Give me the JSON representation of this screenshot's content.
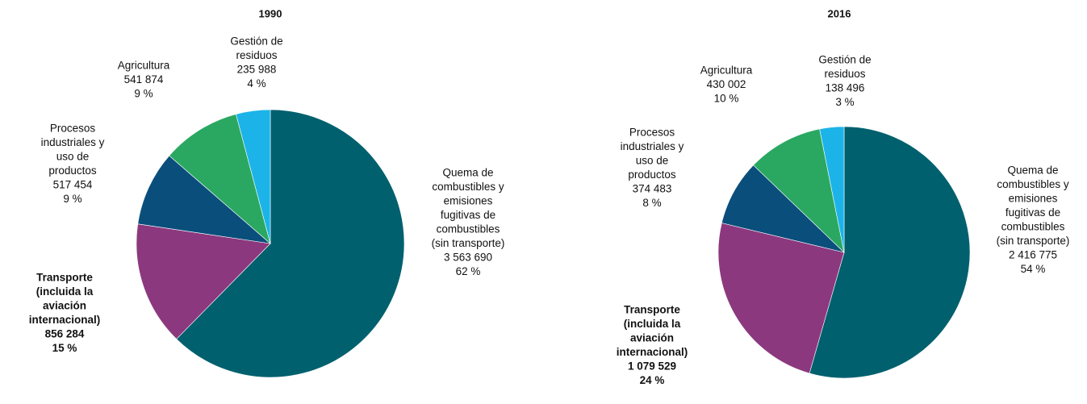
{
  "chart_data": [
    {
      "type": "pie",
      "title": "1990",
      "categories": [
        [
          "Quema de",
          "combustibles y",
          "emisiones",
          "fugitivas de",
          "combustibles",
          "(sin transporte)"
        ],
        [
          "Transporte",
          "(incluida la",
          "aviación",
          "internacional)"
        ],
        [
          "Procesos",
          "industriales y",
          "uso de",
          "productos"
        ],
        [
          "Agricultura"
        ],
        [
          "Gestión de",
          "residuos"
        ]
      ],
      "values": [
        3563690,
        856284,
        517454,
        541874,
        235988
      ],
      "value_labels": [
        "3 563 690",
        "856 284",
        "517 454",
        "541 874",
        "235 988"
      ],
      "percent_labels": [
        "62 %",
        "15 %",
        "9 %",
        "9 %",
        "4 %"
      ],
      "colors": [
        "#00606e",
        "#8c387e",
        "#0a4e7c",
        "#2aa862",
        "#1cb4e8"
      ]
    },
    {
      "type": "pie",
      "title": "2016",
      "categories": [
        [
          "Quema de",
          "combustibles y",
          "emisiones",
          "fugitivas de",
          "combustibles",
          "(sin transporte)"
        ],
        [
          "Transporte",
          "(incluida la",
          "aviación",
          "internacional)"
        ],
        [
          "Procesos",
          "industriales y",
          "uso de",
          "productos"
        ],
        [
          "Agricultura"
        ],
        [
          "Gestión de",
          "residuos"
        ]
      ],
      "values": [
        2416775,
        1079529,
        374483,
        430002,
        138496
      ],
      "value_labels": [
        "2 416 775",
        "1 079 529",
        "374 483",
        "430 002",
        "138 496"
      ],
      "percent_labels": [
        "54 %",
        "24 %",
        "8 %",
        "10 %",
        "3 %"
      ],
      "colors": [
        "#00606e",
        "#8c387e",
        "#0a4e7c",
        "#2aa862",
        "#1cb4e8"
      ]
    }
  ]
}
